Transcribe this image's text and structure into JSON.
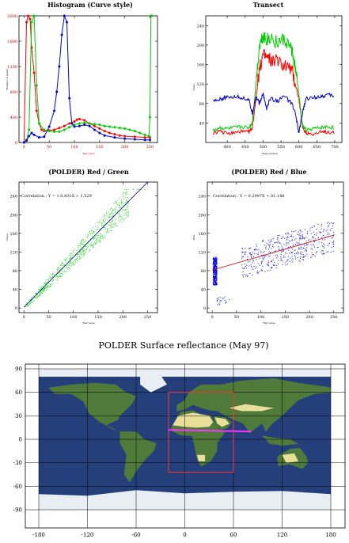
{
  "chart_data": [
    {
      "id": "histogram",
      "type": "line",
      "title": "Histogram (Curve style)",
      "xlabel": "Red value",
      "ylabel": "Number of (pixel)",
      "xlim": [
        -10,
        265
      ],
      "ylim": [
        0,
        2000
      ],
      "x_ticks": [
        "0",
        "50",
        "100",
        "150",
        "200",
        "250"
      ],
      "x_tick_values": [
        0,
        50,
        100,
        150,
        200,
        250
      ],
      "y_ticks": [
        "0",
        "400",
        "800",
        "1200",
        "1600",
        "2000"
      ],
      "y_tick_values": [
        0,
        400,
        800,
        1200,
        1600,
        2000
      ],
      "grid": false,
      "series": [
        {
          "color": "#ff0000",
          "x": [
            0,
            5,
            8,
            12,
            15,
            20,
            25,
            30,
            35,
            40,
            50,
            60,
            70,
            80,
            90,
            100,
            105,
            110,
            120,
            130,
            140,
            150,
            160,
            170,
            180,
            190,
            200,
            220,
            240,
            250
          ],
          "y": [
            0,
            1900,
            2000,
            1950,
            1500,
            1100,
            500,
            300,
            200,
            180,
            190,
            200,
            230,
            260,
            300,
            330,
            360,
            370,
            350,
            300,
            260,
            220,
            180,
            150,
            130,
            110,
            100,
            90,
            80,
            80
          ]
        },
        {
          "color": "#00cc00",
          "x": [
            0,
            5,
            10,
            15,
            20,
            25,
            30,
            40,
            50,
            60,
            70,
            80,
            90,
            100,
            110,
            120,
            130,
            140,
            150,
            160,
            170,
            180,
            190,
            200,
            210,
            220,
            230,
            240,
            248,
            250,
            252,
            254
          ],
          "y": [
            0,
            40,
            200,
            1900,
            2000,
            900,
            300,
            200,
            180,
            170,
            170,
            200,
            240,
            280,
            300,
            310,
            300,
            290,
            280,
            260,
            250,
            240,
            230,
            220,
            200,
            180,
            150,
            120,
            100,
            400,
            2000,
            2000
          ]
        },
        {
          "color": "#0000cc",
          "x": [
            0,
            5,
            10,
            15,
            20,
            30,
            40,
            50,
            60,
            65,
            70,
            75,
            80,
            85,
            90,
            95,
            100,
            110,
            120,
            130,
            140,
            150,
            160,
            180,
            200,
            220,
            240,
            250
          ],
          "y": [
            0,
            30,
            100,
            150,
            120,
            80,
            90,
            250,
            500,
            800,
            1200,
            1700,
            2000,
            1900,
            700,
            300,
            250,
            260,
            280,
            260,
            200,
            150,
            110,
            80,
            60,
            50,
            40,
            40
          ]
        }
      ]
    },
    {
      "id": "transect",
      "type": "line",
      "title": "Transect",
      "xlabel": "Pixel number",
      "ylabel": "Value",
      "xlim": [
        340,
        720
      ],
      "ylim": [
        0,
        260
      ],
      "x_ticks": [
        "400",
        "450",
        "500",
        "550",
        "600",
        "650",
        "700"
      ],
      "x_tick_values": [
        400,
        450,
        500,
        550,
        600,
        650,
        700
      ],
      "y_ticks": [
        "40",
        "80",
        "120",
        "160",
        "200",
        "240"
      ],
      "y_tick_values": [
        40,
        80,
        120,
        160,
        200,
        240
      ],
      "grid": false,
      "series": [
        {
          "color": "#ff0000",
          "x": [
            360,
            380,
            400,
            420,
            440,
            460,
            470,
            480,
            490,
            500,
            510,
            520,
            540,
            560,
            580,
            590,
            600,
            610,
            620,
            640,
            660,
            680,
            700
          ],
          "y": [
            20,
            22,
            18,
            20,
            22,
            21,
            30,
            90,
            150,
            180,
            175,
            170,
            165,
            160,
            150,
            120,
            90,
            30,
            20,
            18,
            20,
            22,
            20
          ]
        },
        {
          "color": "#00cc00",
          "x": [
            360,
            380,
            400,
            420,
            440,
            460,
            470,
            480,
            490,
            500,
            510,
            520,
            540,
            560,
            580,
            590,
            600,
            610,
            620,
            640,
            660,
            680,
            700
          ],
          "y": [
            25,
            30,
            28,
            30,
            32,
            30,
            40,
            120,
            200,
            220,
            210,
            215,
            205,
            210,
            190,
            150,
            100,
            35,
            25,
            28,
            30,
            32,
            30
          ]
        },
        {
          "color": "#0000cc",
          "x": [
            360,
            380,
            400,
            420,
            440,
            460,
            470,
            480,
            490,
            500,
            510,
            520,
            540,
            560,
            580,
            590,
            600,
            610,
            620,
            640,
            660,
            680,
            700
          ],
          "y": [
            85,
            90,
            92,
            95,
            92,
            88,
            60,
            95,
            80,
            100,
            70,
            90,
            85,
            95,
            80,
            60,
            20,
            60,
            90,
            92,
            95,
            98,
            95
          ]
        }
      ]
    },
    {
      "id": "red-green",
      "type": "scatter",
      "title": "(POLDER) Red / Green",
      "annotation": "Correlation : Y = 1.0.831X + 1.529",
      "xlabel": "Red value",
      "ylabel": "Green",
      "xlim": [
        -10,
        270
      ],
      "ylim": [
        -10,
        270
      ],
      "x_ticks": [
        "0",
        "50",
        "100",
        "150",
        "200",
        "250"
      ],
      "x_tick_values": [
        0,
        50,
        100,
        150,
        200,
        250
      ],
      "y_ticks": [
        "0",
        "40",
        "80",
        "120",
        "160",
        "200",
        "240"
      ],
      "y_tick_values": [
        0,
        40,
        80,
        120,
        160,
        200,
        240
      ],
      "color": "#33dd33",
      "fit_color": "#000080",
      "fit": {
        "slope": 1.0831,
        "intercept": 1.529
      },
      "grid": false
    },
    {
      "id": "red-blue",
      "type": "scatter",
      "title": "(POLDER) Red / Blue",
      "annotation": "Correlation : Y = 0.2997X + 81.148",
      "xlabel": "Red value",
      "ylabel": "Blue",
      "xlim": [
        -10,
        270
      ],
      "ylim": [
        -10,
        270
      ],
      "x_ticks": [
        "0",
        "50",
        "100",
        "150",
        "200",
        "250"
      ],
      "x_tick_values": [
        0,
        50,
        100,
        150,
        200,
        250
      ],
      "y_ticks": [
        "0",
        "40",
        "80",
        "120",
        "160",
        "200",
        "240"
      ],
      "y_tick_values": [
        0,
        40,
        80,
        120,
        160,
        200,
        240
      ],
      "color": "#0000ee",
      "fit_color": "#cc0000",
      "fit": {
        "slope": 0.2997,
        "intercept": 81.148
      },
      "grid": false
    }
  ],
  "map": {
    "title": "POLDER  Surface reflectance  (May 97)",
    "x_ticks": [
      "-180",
      "-120",
      "-60",
      "0",
      "60",
      "120",
      "180"
    ],
    "x_tick_values": [
      -180,
      -120,
      -60,
      0,
      60,
      120,
      180
    ],
    "y_ticks": [
      "90",
      "60",
      "30",
      "0",
      "-30",
      "-60",
      "-90"
    ],
    "y_tick_values": [
      90,
      60,
      30,
      0,
      -30,
      -60,
      -90
    ],
    "region_box": {
      "lon_min": -20,
      "lon_max": 60,
      "lat_min": -42,
      "lat_max": 60,
      "color": "#ff3333"
    },
    "transect_line": {
      "lon_start": -20,
      "lon_end": 82,
      "lat_start": 12,
      "lat_end": 10,
      "color": "#ff33ff"
    },
    "ocean_color": "#243f7a",
    "land_color": "#4f7a3a",
    "desert_color": "#e8df9a",
    "ice_color": "#e8eef4"
  }
}
